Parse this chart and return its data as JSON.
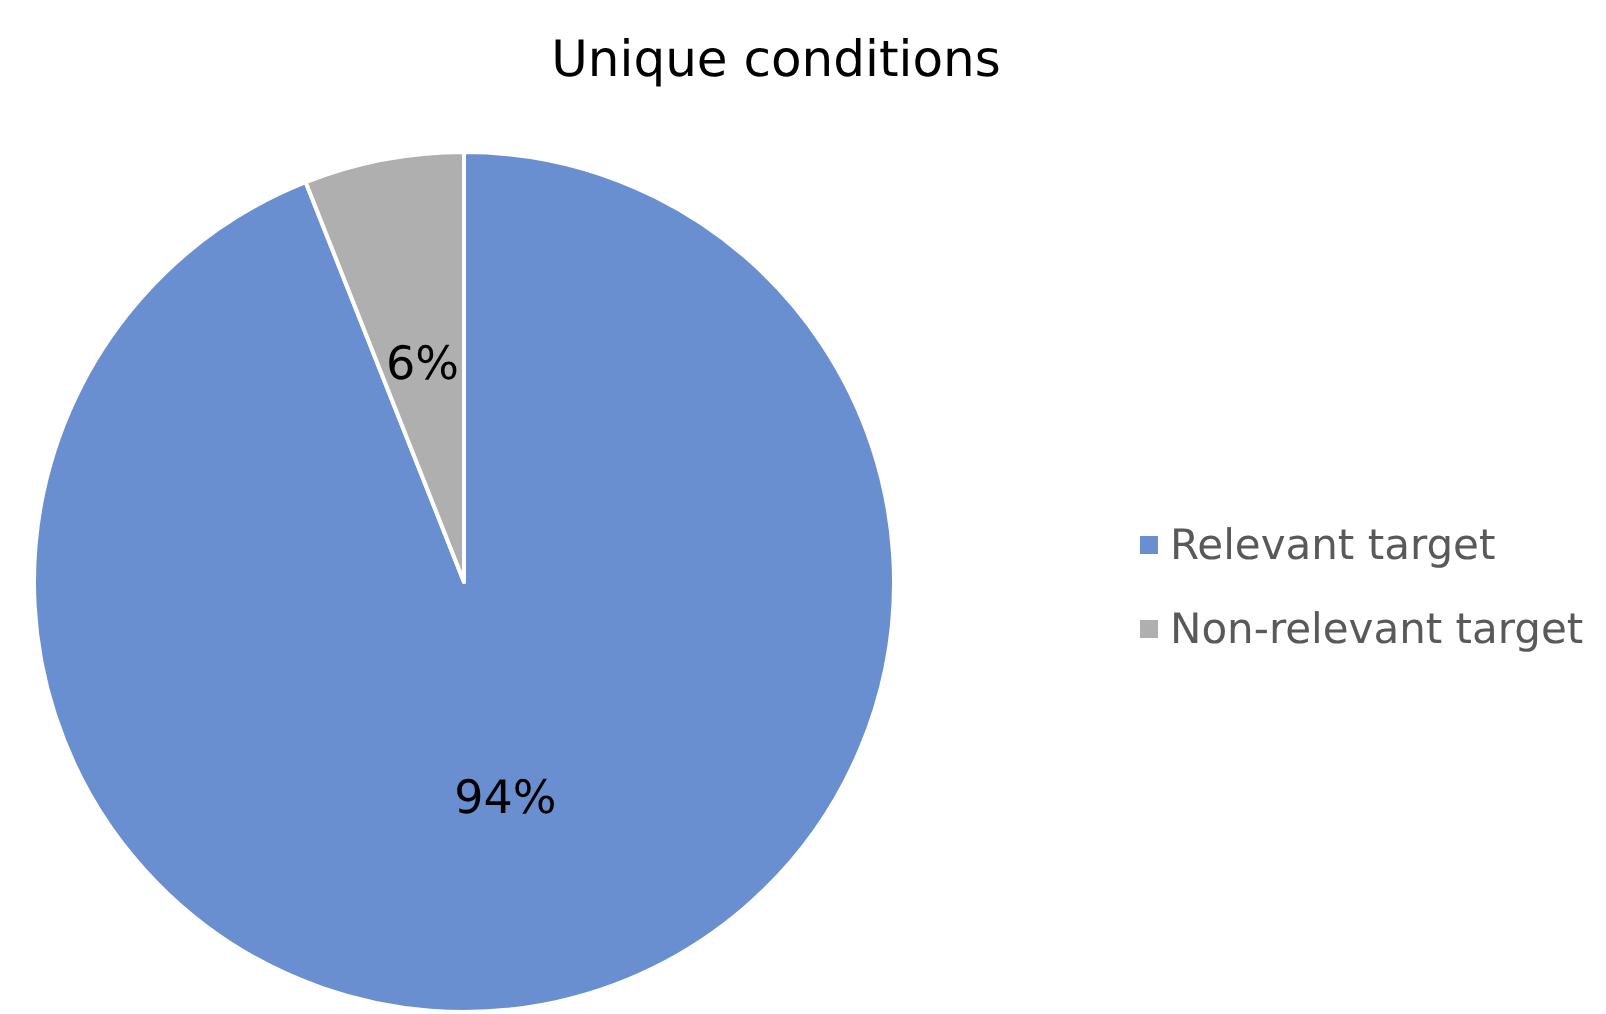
{
  "chart_data": {
    "type": "pie",
    "title": "Unique conditions",
    "categories": [
      "Relevant target",
      "Non-relevant target"
    ],
    "values": [
      94,
      6
    ],
    "value_labels": [
      "94%",
      "6%"
    ],
    "colors": [
      "#6a8fd0",
      "#afafaf"
    ],
    "legend": "right"
  }
}
